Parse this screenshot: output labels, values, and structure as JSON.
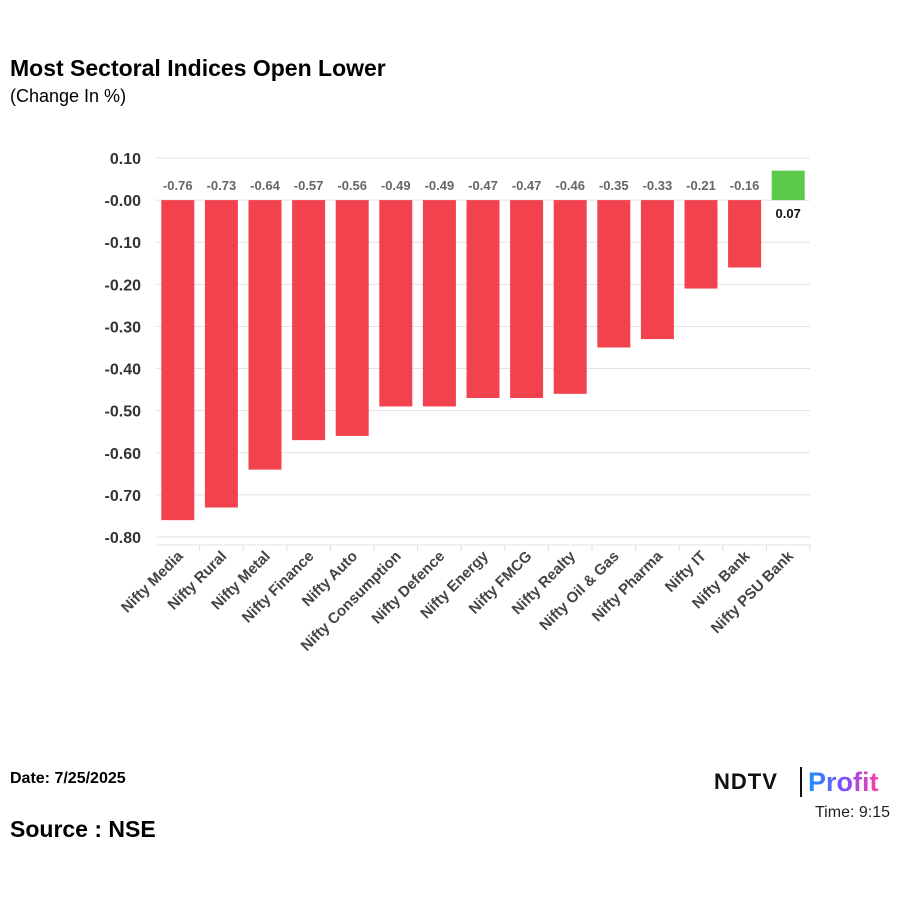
{
  "title": "Most Sectoral Indices Open Lower",
  "subtitle": "(Change In %)",
  "date": "Date: 7/25/2025",
  "source": "Source : NSE",
  "logo": {
    "ndtv": "NDTV",
    "profit": "Profit",
    "time": "Time: 9:15"
  },
  "colors": {
    "negative": "#f2424e",
    "positive": "#5cc94a"
  },
  "chart_data": {
    "type": "bar",
    "title": "Most Sectoral Indices Open Lower",
    "ylabel": "Change In %",
    "categories": [
      "Nifty Media",
      "Nifty Rural",
      "Nifty Metal",
      "Nifty Finance",
      "Nifty Auto",
      "Nifty Consumption",
      "Nifty Defence",
      "Nifty Energy",
      "Nifty FMCG",
      "Nifty Realty",
      "Nifty Oil & Gas",
      "Nifty Pharma",
      "Nifty IT",
      "Nifty Bank",
      "Nifty PSU Bank"
    ],
    "values": [
      -0.76,
      -0.73,
      -0.64,
      -0.57,
      -0.56,
      -0.49,
      -0.49,
      -0.47,
      -0.47,
      -0.46,
      -0.35,
      -0.33,
      -0.21,
      -0.16,
      0.07
    ],
    "yticks": [
      "0.10",
      "-0.00",
      "-0.10",
      "-0.20",
      "-0.30",
      "-0.40",
      "-0.50",
      "-0.60",
      "-0.70",
      "-0.80"
    ],
    "ylim": [
      -0.8,
      0.1
    ],
    "grid": true
  }
}
